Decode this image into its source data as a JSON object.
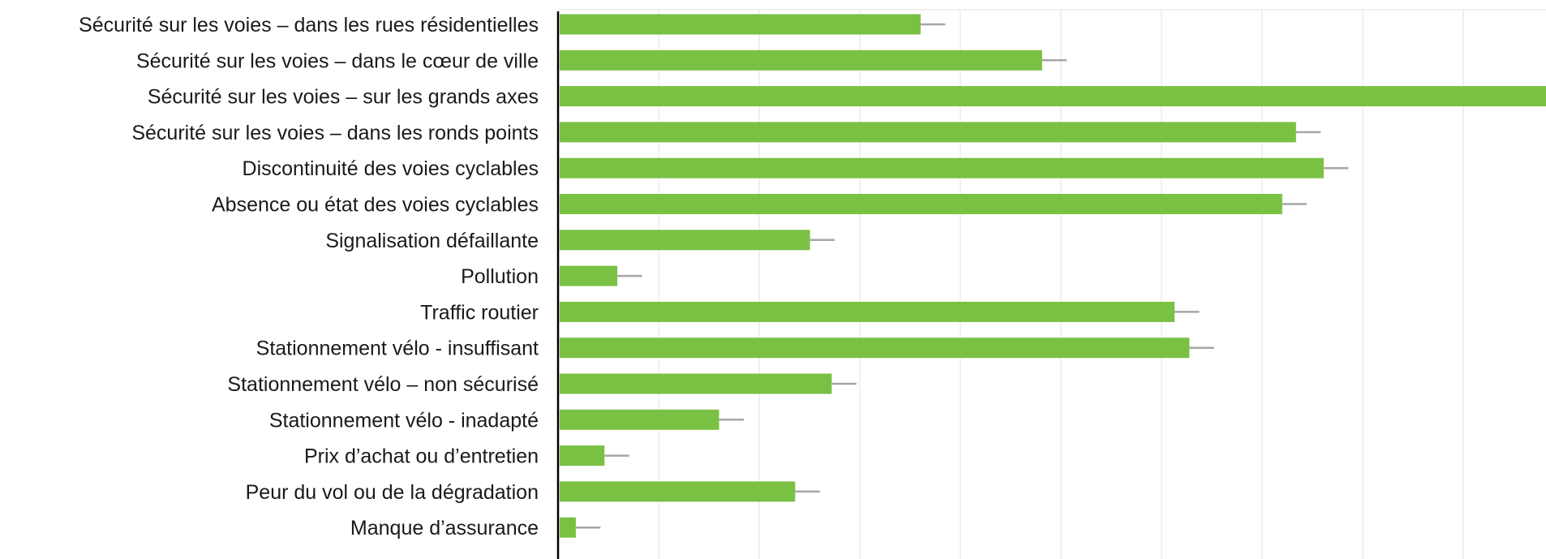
{
  "chart_data": {
    "type": "bar",
    "orientation": "horizontal",
    "title": "",
    "xlabel": "",
    "ylabel": "",
    "grid": true,
    "legend": "none",
    "xlim": [
      0,
      100
    ],
    "colors": {
      "bar": "#7ac143",
      "error_bar": "#a6a6a6",
      "axis": "#000000",
      "grid": "#ececec"
    },
    "categories": [
      "Sécurité sur les voies – dans les rues résidentielles",
      "Sécurité sur les voies – dans le cœur de ville",
      "Sécurité sur les voies – sur les grands axes",
      "Sécurité sur les voies – dans les ronds points",
      "Discontinuité des voies cyclables",
      "Absence ou état des voies cyclables",
      "Signalisation défaillante",
      "Pollution",
      "Traffic routier",
      "Stationnement vélo - insuffisant",
      "Stationnement vélo – non sécurisé",
      "Stationnement vélo - inadapté",
      "Prix d’achat ou d’entretien",
      "Peur du vol ou de la dégradation",
      "Manque d’assurance"
    ],
    "values": [
      36.7,
      49.0,
      100,
      74.7,
      77.5,
      73.3,
      25.5,
      6.0,
      62.4,
      63.9,
      27.7,
      16.3,
      4.7,
      24.0,
      1.8
    ],
    "error": [
      2.5,
      2.5,
      0,
      2.5,
      2.5,
      2.5,
      2.5,
      2.5,
      2.5,
      2.5,
      2.5,
      2.5,
      2.5,
      2.5,
      2.5
    ]
  }
}
